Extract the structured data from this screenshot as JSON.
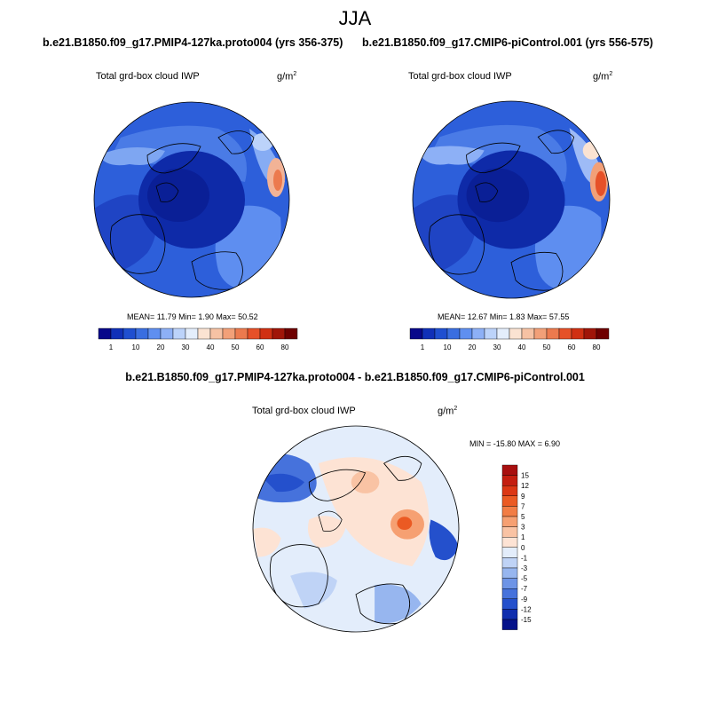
{
  "figure": {
    "season": "JJA",
    "case_left": "b.e21.B1850.f09_g17.PMIP4-127ka.proto004 (yrs 356-375)",
    "case_right": "b.e21.B1850.f09_g17.CMIP6-piControl.001 (yrs 556-575)",
    "diff_header": "b.e21.B1850.f09_g17.PMIP4-127ka.proto004 - b.e21.B1850.f09_g17.CMIP6-piControl.001"
  },
  "panels": {
    "left": {
      "variable": "Total grd-box cloud IWP",
      "units_base": "g/m",
      "units_exp": "2",
      "stats": "MEAN=  11.79  Min=   1.90  Max=  50.52"
    },
    "right": {
      "variable": "Total grd-box cloud IWP",
      "units_base": "g/m",
      "units_exp": "2",
      "stats": "MEAN=  12.67  Min=   1.83  Max=  57.55"
    },
    "diff": {
      "variable": "Total grd-box cloud IWP",
      "units_base": "g/m",
      "units_exp": "2",
      "stats": "MIN = -15.80 MAX =   6.90"
    }
  },
  "colorbars": {
    "absolute": {
      "colors": [
        "#08088a",
        "#1030b8",
        "#1f4fd0",
        "#3a6ee0",
        "#5f8ff0",
        "#8db0f6",
        "#bcd3fa",
        "#e4eefc",
        "#fbe3d2",
        "#f6c2a4",
        "#f2a078",
        "#ec7a4e",
        "#e65128",
        "#d03012",
        "#a01508",
        "#6e0000"
      ],
      "labels": [
        "1",
        "10",
        "20",
        "30",
        "40",
        "50",
        "60",
        "80"
      ]
    },
    "difference": {
      "colors_top_to_bottom": [
        "#a80f0f",
        "#c41e10",
        "#dc3714",
        "#eb5a23",
        "#f27d45",
        "#f6a072",
        "#f9c3a4",
        "#fde3d4",
        "#e3edfb",
        "#bfd3f6",
        "#97b6ef",
        "#6d94e6",
        "#4672dc",
        "#2450cc",
        "#0f2eae",
        "#05128a"
      ],
      "labels": [
        "15",
        "12",
        "9",
        "7",
        "5",
        "3",
        "1",
        "0",
        "-1",
        "-3",
        "-5",
        "-7",
        "-9",
        "-12",
        "-15"
      ]
    }
  }
}
